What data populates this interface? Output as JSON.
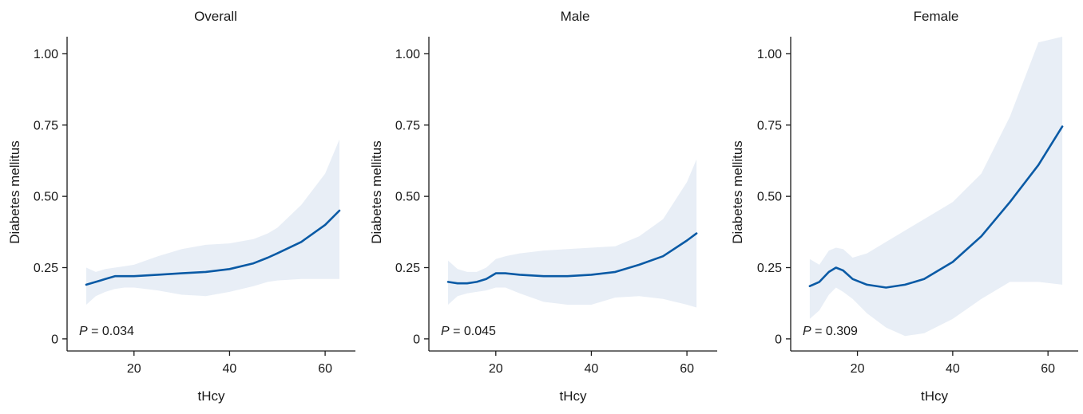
{
  "chart_data": [
    {
      "type": "line",
      "title": "Overall",
      "xlabel": "tHcy",
      "ylabel": "Diabetes mellitus",
      "xlim": [
        8,
        65
      ],
      "ylim": [
        -0.02,
        1.06
      ],
      "xticks": [
        20,
        40,
        60
      ],
      "yticks": [
        0,
        0.25,
        0.5,
        0.75,
        1.0
      ],
      "ytick_labels": [
        "0",
        "0.25",
        "0.50",
        "0.75",
        "1.00"
      ],
      "annotation": {
        "p_label": "P",
        "p_text": " = 0.034"
      },
      "colors": {
        "line": "#0a5aa5",
        "band": "#e8eef6"
      },
      "series": [
        {
          "x": [
            10,
            12,
            14,
            16,
            18,
            20,
            25,
            30,
            35,
            40,
            45,
            48,
            50,
            55,
            60,
            63
          ],
          "y": [
            0.19,
            0.2,
            0.21,
            0.22,
            0.22,
            0.22,
            0.225,
            0.23,
            0.235,
            0.245,
            0.265,
            0.285,
            0.3,
            0.34,
            0.4,
            0.45
          ],
          "lo": [
            0.12,
            0.15,
            0.165,
            0.175,
            0.18,
            0.18,
            0.17,
            0.155,
            0.15,
            0.165,
            0.185,
            0.2,
            0.205,
            0.21,
            0.21,
            0.21
          ],
          "hi": [
            0.25,
            0.235,
            0.245,
            0.25,
            0.255,
            0.26,
            0.29,
            0.315,
            0.33,
            0.335,
            0.35,
            0.37,
            0.39,
            0.47,
            0.58,
            0.7
          ]
        }
      ]
    },
    {
      "type": "line",
      "title": "Male",
      "xlabel": "tHcy",
      "ylabel": "Diabetes mellitus",
      "xlim": [
        8,
        65
      ],
      "ylim": [
        -0.02,
        1.06
      ],
      "xticks": [
        20,
        40,
        60
      ],
      "yticks": [
        0,
        0.25,
        0.5,
        0.75,
        1.0
      ],
      "ytick_labels": [
        "0",
        "0.25",
        "0.50",
        "0.75",
        "1.00"
      ],
      "annotation": {
        "p_label": "P",
        "p_text": " = 0.045"
      },
      "colors": {
        "line": "#0a5aa5",
        "band": "#e8eef6"
      },
      "series": [
        {
          "x": [
            10,
            12,
            14,
            16,
            18,
            20,
            22,
            25,
            30,
            35,
            40,
            45,
            50,
            55,
            60,
            62
          ],
          "y": [
            0.2,
            0.195,
            0.195,
            0.2,
            0.21,
            0.23,
            0.23,
            0.225,
            0.22,
            0.22,
            0.225,
            0.235,
            0.26,
            0.29,
            0.345,
            0.37
          ],
          "lo": [
            0.12,
            0.15,
            0.16,
            0.165,
            0.17,
            0.18,
            0.18,
            0.16,
            0.13,
            0.12,
            0.12,
            0.145,
            0.15,
            0.14,
            0.12,
            0.11
          ],
          "hi": [
            0.275,
            0.245,
            0.235,
            0.235,
            0.25,
            0.28,
            0.29,
            0.3,
            0.31,
            0.315,
            0.32,
            0.325,
            0.36,
            0.42,
            0.55,
            0.63
          ]
        }
      ]
    },
    {
      "type": "line",
      "title": "Female",
      "xlabel": "tHcy",
      "ylabel": "Diabetes mellitus",
      "xlim": [
        8,
        65
      ],
      "ylim": [
        -0.02,
        1.06
      ],
      "xticks": [
        20,
        40,
        60
      ],
      "yticks": [
        0,
        0.25,
        0.5,
        0.75,
        1.0
      ],
      "ytick_labels": [
        "0",
        "0.25",
        "0.50",
        "0.75",
        "1.00"
      ],
      "annotation": {
        "p_label": "P",
        "p_text": " = 0.309"
      },
      "colors": {
        "line": "#0a5aa5",
        "band": "#e8eef6"
      },
      "series": [
        {
          "x": [
            10,
            12,
            14,
            15.5,
            17,
            19,
            22,
            26,
            30,
            34,
            40,
            46,
            52,
            58,
            63
          ],
          "y": [
            0.185,
            0.2,
            0.235,
            0.25,
            0.24,
            0.21,
            0.19,
            0.18,
            0.19,
            0.21,
            0.27,
            0.36,
            0.48,
            0.61,
            0.745
          ],
          "lo": [
            0.07,
            0.1,
            0.155,
            0.18,
            0.165,
            0.14,
            0.09,
            0.04,
            0.01,
            0.02,
            0.07,
            0.14,
            0.2,
            0.2,
            0.19
          ],
          "hi": [
            0.28,
            0.26,
            0.31,
            0.32,
            0.315,
            0.285,
            0.3,
            0.34,
            0.38,
            0.42,
            0.48,
            0.58,
            0.78,
            1.04,
            1.06
          ]
        }
      ]
    }
  ]
}
